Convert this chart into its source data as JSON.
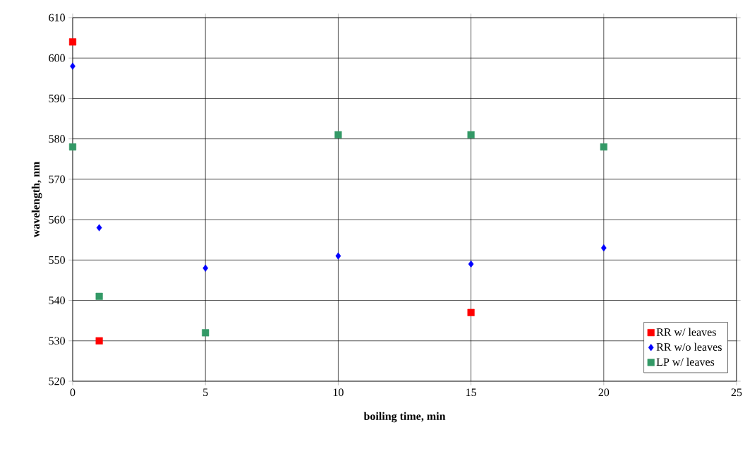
{
  "chart_data": {
    "type": "scatter",
    "xlabel": "boiling time, min",
    "ylabel": "wavelength, nm",
    "x": [
      0,
      1,
      5,
      10,
      15,
      20
    ],
    "series": [
      {
        "name": "RR w/ leaves",
        "color": "#ff0000",
        "marker": "square",
        "values": [
          604,
          530,
          null,
          null,
          537,
          null
        ]
      },
      {
        "name": "RR w/o leaves",
        "color": "#0000ff",
        "marker": "diamond",
        "values": [
          598,
          558,
          548,
          551,
          549,
          553
        ]
      },
      {
        "name": "LP w/ leaves",
        "color": "#339966",
        "marker": "square",
        "values": [
          578,
          541,
          532,
          581,
          581,
          578
        ]
      }
    ],
    "xlim": [
      0,
      25
    ],
    "ylim": [
      520,
      610
    ],
    "xticks": [
      0,
      5,
      10,
      15,
      20,
      25
    ],
    "yticks": [
      520,
      530,
      540,
      550,
      560,
      570,
      580,
      590,
      600,
      610
    ],
    "grid": true,
    "legend": "bottom right"
  }
}
